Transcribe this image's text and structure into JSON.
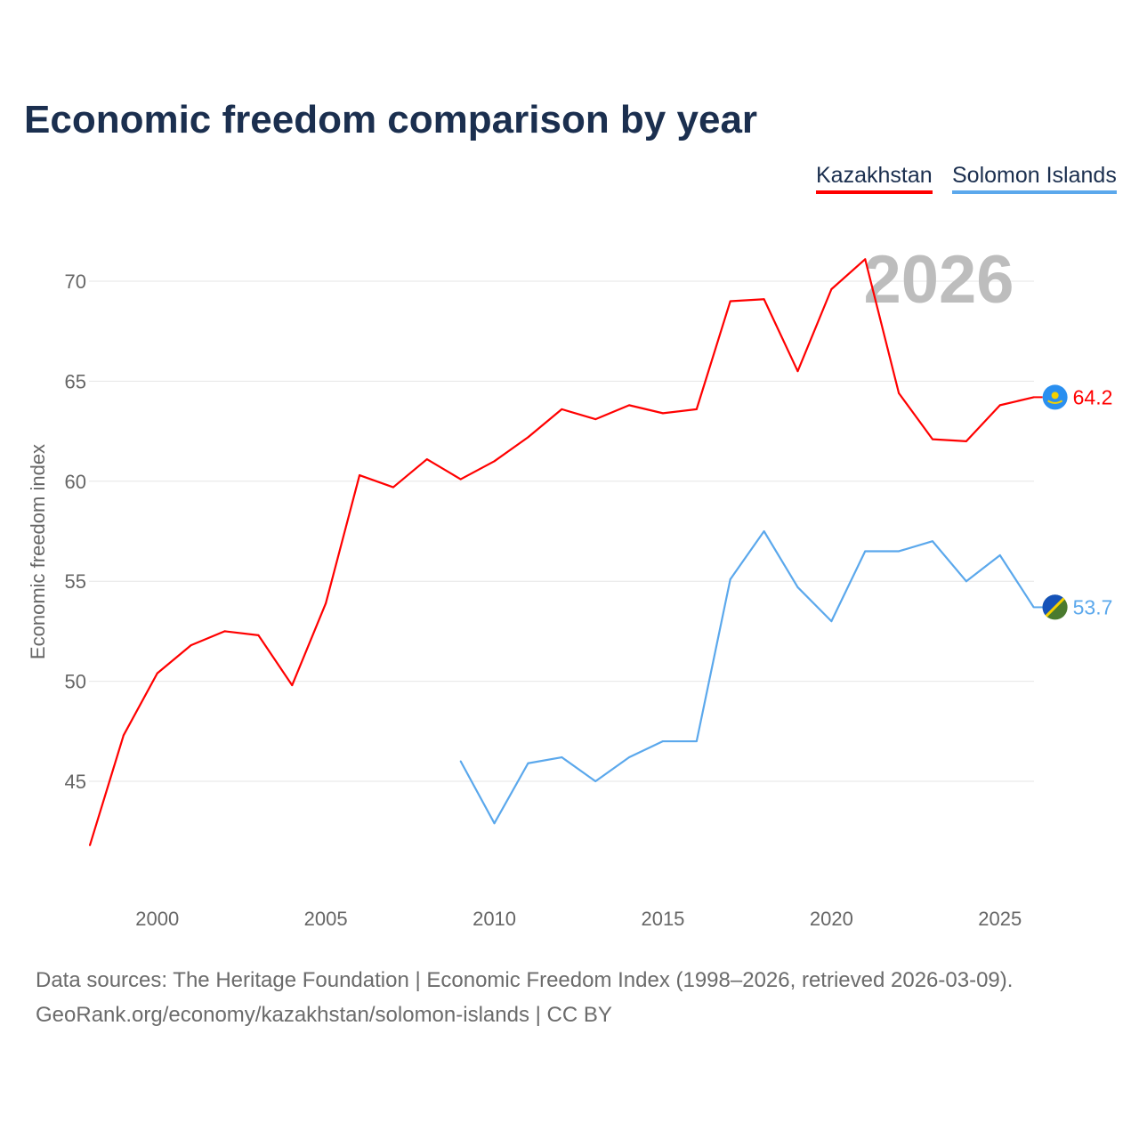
{
  "title": "Economic freedom comparison by year",
  "legend": [
    {
      "label": "Kazakhstan",
      "color": "#ff0000"
    },
    {
      "label": "Solomon Islands",
      "color": "#5ba8ec"
    }
  ],
  "year_watermark": "2026",
  "footer": {
    "line1": "Data sources: The Heritage Foundation | Economic Freedom Index (1998–2026, retrieved 2026-03-09).",
    "line2": "GeoRank.org/economy/kazakhstan/solomon-islands | CC BY"
  },
  "chart_data": {
    "type": "line",
    "title": "Economic freedom comparison by year",
    "xlabel": "",
    "ylabel": "Economic freedom index",
    "xlim": [
      1998,
      2026
    ],
    "ylim": [
      40.5,
      73
    ],
    "xticks": [
      2000,
      2005,
      2010,
      2015,
      2020,
      2025
    ],
    "yticks": [
      45,
      50,
      55,
      60,
      65,
      70
    ],
    "grid": true,
    "legend_position": "top-right",
    "series": [
      {
        "name": "Kazakhstan",
        "color": "#ff0000",
        "end_label": "64.2",
        "x": [
          1998,
          1999,
          2000,
          2001,
          2002,
          2003,
          2004,
          2005,
          2006,
          2007,
          2008,
          2009,
          2010,
          2011,
          2012,
          2013,
          2014,
          2015,
          2016,
          2017,
          2018,
          2019,
          2020,
          2021,
          2022,
          2023,
          2024,
          2025,
          2026
        ],
        "y": [
          41.8,
          47.3,
          50.4,
          51.8,
          52.5,
          52.3,
          49.8,
          53.9,
          60.3,
          59.7,
          61.1,
          60.1,
          61.0,
          62.2,
          63.6,
          63.1,
          63.8,
          63.4,
          63.6,
          69.0,
          69.1,
          65.5,
          69.6,
          71.1,
          64.4,
          62.1,
          62.0,
          63.8,
          64.2
        ]
      },
      {
        "name": "Solomon Islands",
        "color": "#5ba8ec",
        "end_label": "53.7",
        "x": [
          2009,
          2010,
          2011,
          2012,
          2013,
          2014,
          2015,
          2016,
          2017,
          2018,
          2019,
          2020,
          2021,
          2022,
          2023,
          2024,
          2025,
          2026
        ],
        "y": [
          46.0,
          42.9,
          45.9,
          46.2,
          45.0,
          46.2,
          47.0,
          47.0,
          55.1,
          57.5,
          54.7,
          53.0,
          56.5,
          56.5,
          57.0,
          55.0,
          56.3,
          53.7
        ]
      }
    ]
  }
}
